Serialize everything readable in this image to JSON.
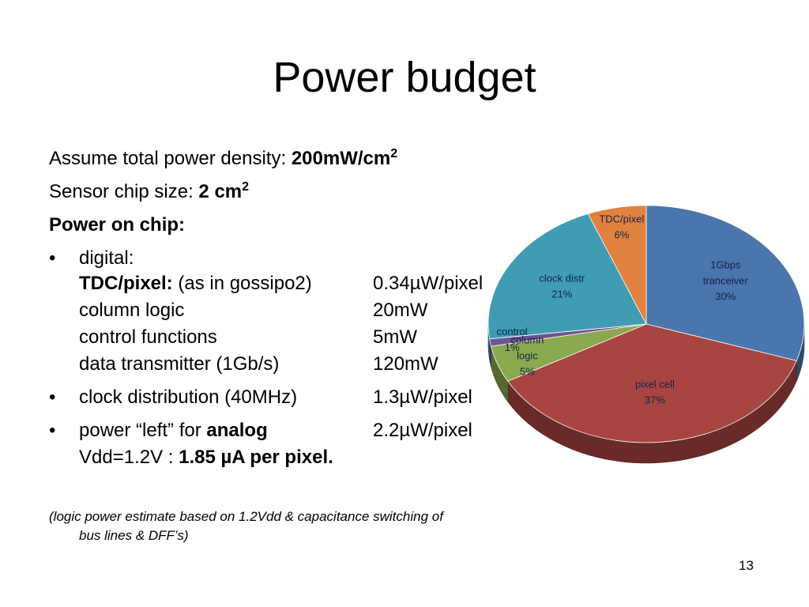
{
  "slide": {
    "title": "Power budget",
    "line1_text": "Assume total power density: ",
    "line1_value": "200mW/cm",
    "line1_sup": "2",
    "line2_text": "Sensor chip size: ",
    "line2_value": "2 cm",
    "line2_sup": "2",
    "line3": "Power on chip:",
    "bullet_glyph": "•",
    "digital_label": "digital:",
    "tdc_label": "TDC/pixel:",
    "tdc_note": " (as in gossipo2)",
    "tdc_value": "0.34µW/pixel",
    "column_label": "column logic",
    "column_value": "20mW",
    "control_label": "control functions",
    "control_value": "5mW",
    "data_label": "data transmitter (1Gb/s)",
    "data_value": "120mW",
    "clock_label": "clock distribution (40MHz)",
    "clock_value": "1.3µW/pixel",
    "power_left_label": "power “left”  for ",
    "power_left_bold": "analog",
    "power_left_value": "2.2µW/pixel",
    "vdd_text": "Vdd=1.2V : ",
    "vdd_bold": "1.85 µA per pixel.",
    "note_line1": "(logic power estimate based on 1.2Vdd & capacitance switching of",
    "note_line2": "bus lines & DFF’s)",
    "page_number": "13"
  },
  "chart_data": {
    "type": "pie",
    "slices": [
      {
        "label": "1Gbps tranceiver",
        "label_lines": [
          "1Gbps",
          "tranceiver",
          "30%"
        ],
        "value": 30,
        "color": "#4a75ad"
      },
      {
        "label": "pixel cell",
        "label_lines": [
          "pixel cell",
          "37%"
        ],
        "value": 37,
        "color": "#a84541"
      },
      {
        "label": "column logic",
        "label_lines": [
          "column",
          "logic",
          "5%"
        ],
        "value": 5,
        "color": "#8aa84d"
      },
      {
        "label": "control",
        "label_lines": [
          "control",
          "1%"
        ],
        "value": 1,
        "color": "#6e5494"
      },
      {
        "label": "clock distr",
        "label_lines": [
          "clock distr",
          "21%"
        ],
        "value": 21,
        "color": "#3f9cb3"
      },
      {
        "label": "TDC/pixel",
        "label_lines": [
          "TDC/pixel",
          "6%"
        ],
        "value": 6,
        "color": "#e0823d"
      }
    ]
  }
}
